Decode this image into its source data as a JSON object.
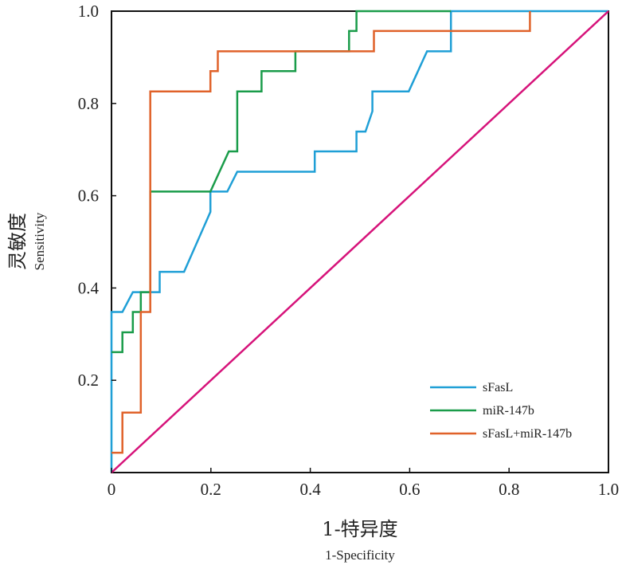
{
  "chart_data": {
    "type": "line",
    "xlabel": "1-特异度",
    "xlabel_en": "1-Specificity",
    "ylabel": "灵敏度",
    "ylabel_en": "Sensitivity",
    "xlim": [
      0,
      1
    ],
    "ylim": [
      0,
      1
    ],
    "x_ticks": [
      "0",
      "0.2",
      "0.4",
      "0.6",
      "0.8",
      "1.0"
    ],
    "y_ticks": [
      "0.2",
      "0.4",
      "0.6",
      "0.8",
      "1.0"
    ],
    "grid": false,
    "legend_position": "bottom-right",
    "series": [
      {
        "name": "sFasL",
        "color": "#1f9fd6",
        "points": [
          [
            0,
            0
          ],
          [
            0,
            0.348
          ],
          [
            0.022,
            0.348
          ],
          [
            0.043,
            0.391
          ],
          [
            0.097,
            0.391
          ],
          [
            0.097,
            0.435
          ],
          [
            0.146,
            0.435
          ],
          [
            0.199,
            0.565
          ],
          [
            0.199,
            0.609
          ],
          [
            0.233,
            0.609
          ],
          [
            0.253,
            0.652
          ],
          [
            0.409,
            0.652
          ],
          [
            0.409,
            0.696
          ],
          [
            0.493,
            0.696
          ],
          [
            0.493,
            0.739
          ],
          [
            0.511,
            0.739
          ],
          [
            0.525,
            0.783
          ],
          [
            0.525,
            0.826
          ],
          [
            0.598,
            0.826
          ],
          [
            0.635,
            0.913
          ],
          [
            0.683,
            0.913
          ],
          [
            0.683,
            1.0
          ],
          [
            1.0,
            1.0
          ]
        ]
      },
      {
        "name": "miR-147b",
        "color": "#1a9c4a",
        "points": [
          [
            0,
            0.261
          ],
          [
            0.022,
            0.261
          ],
          [
            0.022,
            0.304
          ],
          [
            0.043,
            0.304
          ],
          [
            0.043,
            0.348
          ],
          [
            0.059,
            0.348
          ],
          [
            0.059,
            0.391
          ],
          [
            0.078,
            0.391
          ],
          [
            0.078,
            0.609
          ],
          [
            0.199,
            0.609
          ],
          [
            0.236,
            0.696
          ],
          [
            0.253,
            0.696
          ],
          [
            0.253,
            0.826
          ],
          [
            0.302,
            0.826
          ],
          [
            0.302,
            0.87
          ],
          [
            0.37,
            0.87
          ],
          [
            0.37,
            0.913
          ],
          [
            0.478,
            0.913
          ],
          [
            0.478,
            0.957
          ],
          [
            0.493,
            0.957
          ],
          [
            0.493,
            1.0
          ],
          [
            0.683,
            1.0
          ]
        ]
      },
      {
        "name": "sFasL+miR-147b",
        "color": "#e0622a",
        "points": [
          [
            0,
            0.043
          ],
          [
            0.022,
            0.043
          ],
          [
            0.022,
            0.13
          ],
          [
            0.059,
            0.13
          ],
          [
            0.059,
            0.348
          ],
          [
            0.078,
            0.348
          ],
          [
            0.078,
            0.826
          ],
          [
            0.199,
            0.826
          ],
          [
            0.199,
            0.87
          ],
          [
            0.214,
            0.87
          ],
          [
            0.214,
            0.913
          ],
          [
            0.528,
            0.913
          ],
          [
            0.528,
            0.957
          ],
          [
            0.842,
            0.957
          ],
          [
            0.842,
            1.0
          ]
        ]
      },
      {
        "name": "",
        "color": "#d6137a",
        "points": [
          [
            0,
            0
          ],
          [
            1,
            1
          ]
        ]
      }
    ]
  }
}
